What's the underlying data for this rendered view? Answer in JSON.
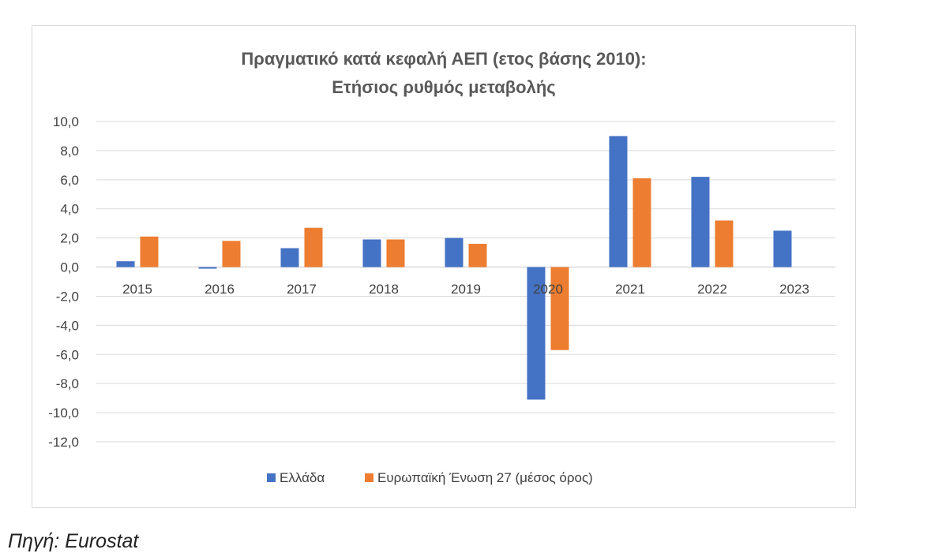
{
  "source_note": "Πηγή: Eurostat",
  "colors": {
    "greece": "#4472c4",
    "eu": "#ed7d31",
    "grid": "#d9d9d9",
    "text": "#404040"
  },
  "chart_data": {
    "type": "bar",
    "title": "Πραγματικό κατά κεφαλή ΑΕΠ (ετος βάσης 2010):",
    "subtitle": "Ετήσιος ρυθμός μεταβολής",
    "categories": [
      "2015",
      "2016",
      "2017",
      "2018",
      "2019",
      "2020",
      "2021",
      "2022",
      "2023"
    ],
    "series": [
      {
        "name": "Ελλάδα",
        "color": "#4472c4",
        "values": [
          0.4,
          -0.1,
          1.3,
          1.9,
          2.0,
          -9.1,
          9.0,
          6.2,
          2.5
        ]
      },
      {
        "name": "Ευρωπαϊκή Ένωση 27 (μέσος όρος)",
        "color": "#ed7d31",
        "values": [
          2.1,
          1.8,
          2.7,
          1.9,
          1.6,
          -5.7,
          6.1,
          3.2,
          null
        ]
      }
    ],
    "ylim": [
      -12,
      10
    ],
    "yticks": [
      "10,0",
      "8,0",
      "6,0",
      "4,0",
      "2,0",
      "0,0",
      "-2,0",
      "-4,0",
      "-6,0",
      "-8,0",
      "-10,0",
      "-12,0"
    ],
    "ytick_values": [
      10,
      8,
      6,
      4,
      2,
      0,
      -2,
      -4,
      -6,
      -8,
      -10,
      -12
    ],
    "grid": true,
    "legend_position": "bottom"
  }
}
